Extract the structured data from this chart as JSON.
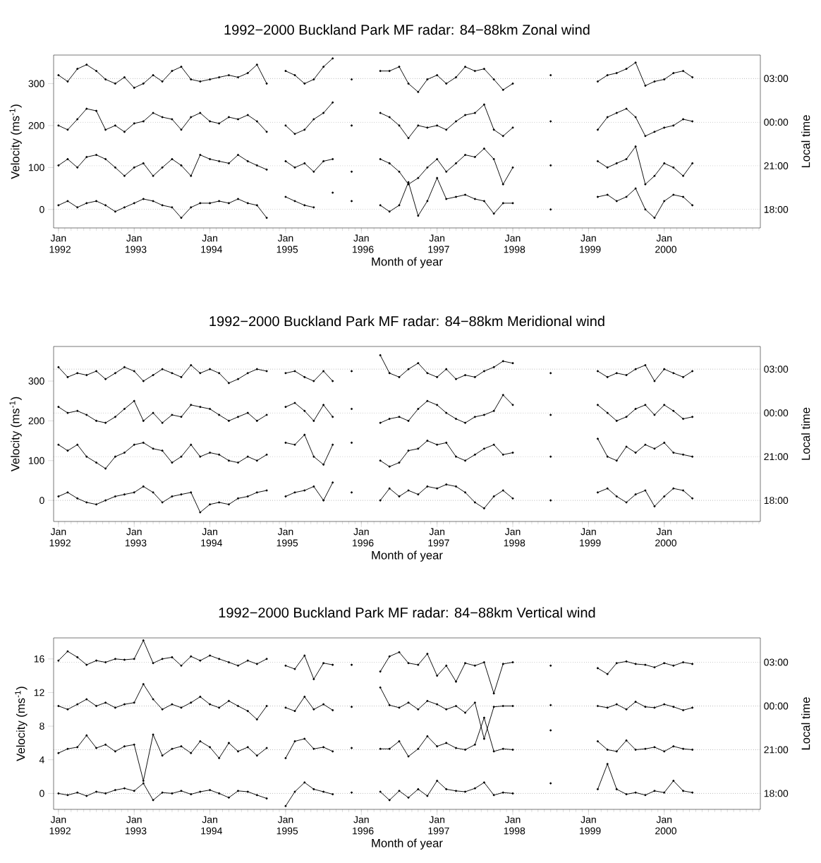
{
  "chart_data": [
    {
      "type": "line",
      "title": "1992−2000 Buckland Park MF radar: 84−88km Zonal wind",
      "xlabel": "Month of year",
      "ylabel": "Velocity (ms$^{-1}$)",
      "y2label": "Local time",
      "x": [
        "1992-01-01",
        "1992-02-15",
        "1992-04-01",
        "1992-05-15",
        "1992-07-01",
        "1992-08-15",
        "1992-10-01",
        "1992-11-15",
        "1993-01-01",
        "1993-02-15",
        "1993-04-01",
        "1993-05-15",
        "1993-07-01",
        "1993-08-15",
        "1993-10-01",
        "1993-11-15",
        "1994-01-01",
        "1994-02-15",
        "1994-04-01",
        "1994-05-15",
        "1994-07-01",
        "1994-08-15",
        "1994-10-01",
        "1994-11-15",
        "1995-01-01",
        "1995-02-15",
        "1995-04-01",
        "1995-05-15",
        "1995-07-01",
        "1995-08-15",
        "1995-10-01",
        "1995-11-15",
        "1996-01-01",
        "1996-02-15",
        "1996-04-01",
        "1996-05-15",
        "1996-07-01",
        "1996-08-15",
        "1996-10-01",
        "1996-11-15",
        "1997-01-01",
        "1997-02-15",
        "1997-04-01",
        "1997-05-15",
        "1997-07-01",
        "1997-08-15",
        "1997-10-01",
        "1997-11-15",
        "1998-01-01",
        "1998-02-15",
        "1998-04-01",
        "1998-05-15",
        "1998-07-01",
        "1998-08-15",
        "1998-10-01",
        "1998-11-15",
        "1999-01-01",
        "1999-02-15",
        "1999-04-01",
        "1999-05-15",
        "1999-07-01",
        "1999-08-15",
        "1999-10-01",
        "1999-11-15",
        "2000-01-01",
        "2000-02-15",
        "2000-04-01",
        "2000-05-15"
      ],
      "xlim": [
        "1991-12-08",
        "2001-04-08"
      ],
      "xticks": [
        {
          "value": "1992-01",
          "label": "Jan 1992"
        },
        {
          "value": "1993-01",
          "label": "Jan 1993"
        },
        {
          "value": "1994-01",
          "label": "Jan 1994"
        },
        {
          "value": "1995-01",
          "label": "Jan 1995"
        },
        {
          "value": "1996-01",
          "label": "Jan 1996"
        },
        {
          "value": "1997-01",
          "label": "Jan 1997"
        },
        {
          "value": "1998-01",
          "label": "Jan 1998"
        },
        {
          "value": "1999-01",
          "label": "Jan 1999"
        },
        {
          "value": "2000-01",
          "label": "Jan 2000"
        }
      ],
      "ylim": [
        -44,
        368
      ],
      "yticks": [
        0,
        100,
        200,
        300
      ],
      "ref_lines": [
        {
          "axis": "y",
          "value": 0,
          "line_style": "dotted",
          "color": "#000000"
        },
        {
          "axis": "y",
          "value": 104,
          "line_style": "dotted",
          "color": "#000000"
        },
        {
          "axis": "y",
          "value": 208,
          "line_style": "dotted",
          "color": "#000000"
        },
        {
          "axis": "y",
          "value": 312,
          "line_style": "dotted",
          "color": "#000000"
        }
      ],
      "annotations": [
        "18:00",
        "21:00",
        "00:00",
        "03:00"
      ],
      "marker": "circle",
      "line_style": "solid",
      "series": [
        {
          "color": "#000000",
          "values": [
            10,
            20,
            5,
            15,
            20,
            10,
            -5,
            5,
            15,
            25,
            20,
            10,
            5,
            -20,
            5,
            15,
            15,
            20,
            15,
            25,
            15,
            10,
            -20,
            null,
            30,
            20,
            10,
            5,
            null,
            40,
            null,
            20,
            null,
            null,
            10,
            -5,
            10,
            65,
            -15,
            20,
            75,
            25,
            30,
            35,
            25,
            20,
            -10,
            15,
            15,
            null,
            null,
            null,
            0,
            null,
            null,
            null,
            null,
            30,
            35,
            20,
            30,
            50,
            0,
            -20,
            20,
            35,
            30,
            10
          ]
        },
        {
          "color": "#000000",
          "values": [
            105,
            120,
            100,
            125,
            130,
            120,
            100,
            80,
            100,
            110,
            80,
            100,
            120,
            105,
            80,
            130,
            120,
            115,
            110,
            130,
            115,
            105,
            95,
            null,
            115,
            100,
            110,
            90,
            115,
            120,
            null,
            90,
            null,
            null,
            120,
            110,
            90,
            60,
            75,
            100,
            120,
            90,
            110,
            130,
            125,
            145,
            120,
            60,
            100,
            null,
            null,
            null,
            105,
            null,
            null,
            null,
            null,
            115,
            100,
            110,
            120,
            150,
            60,
            80,
            110,
            100,
            80,
            110
          ]
        },
        {
          "color": "#000000",
          "values": [
            200,
            190,
            215,
            240,
            235,
            190,
            200,
            185,
            205,
            210,
            230,
            220,
            215,
            190,
            220,
            230,
            210,
            205,
            220,
            215,
            225,
            210,
            185,
            null,
            200,
            180,
            190,
            215,
            230,
            255,
            null,
            200,
            null,
            null,
            230,
            220,
            200,
            170,
            200,
            195,
            200,
            190,
            210,
            225,
            230,
            250,
            190,
            175,
            195,
            null,
            null,
            null,
            210,
            null,
            null,
            null,
            null,
            190,
            220,
            230,
            240,
            220,
            175,
            185,
            195,
            200,
            215,
            210
          ]
        },
        {
          "color": "#000000",
          "values": [
            320,
            305,
            335,
            345,
            330,
            310,
            300,
            315,
            290,
            300,
            320,
            305,
            330,
            340,
            310,
            305,
            310,
            315,
            320,
            315,
            325,
            345,
            300,
            null,
            330,
            320,
            300,
            310,
            340,
            360,
            null,
            310,
            null,
            null,
            330,
            330,
            340,
            300,
            280,
            310,
            320,
            300,
            315,
            340,
            330,
            335,
            310,
            285,
            300,
            null,
            null,
            null,
            320,
            null,
            null,
            null,
            null,
            305,
            320,
            325,
            335,
            350,
            295,
            305,
            310,
            325,
            330,
            315
          ]
        }
      ]
    },
    {
      "type": "line",
      "title": "1992−2000 Buckland Park MF radar: 84−88km Meridional wind",
      "xlabel": "Month of year",
      "ylabel": "Velocity (ms$^{-1}$)",
      "y2label": "Local time",
      "x": [
        "1992-01-01",
        "1992-02-15",
        "1992-04-01",
        "1992-05-15",
        "1992-07-01",
        "1992-08-15",
        "1992-10-01",
        "1992-11-15",
        "1993-01-01",
        "1993-02-15",
        "1993-04-01",
        "1993-05-15",
        "1993-07-01",
        "1993-08-15",
        "1993-10-01",
        "1993-11-15",
        "1994-01-01",
        "1994-02-15",
        "1994-04-01",
        "1994-05-15",
        "1994-07-01",
        "1994-08-15",
        "1994-10-01",
        "1994-11-15",
        "1995-01-01",
        "1995-02-15",
        "1995-04-01",
        "1995-05-15",
        "1995-07-01",
        "1995-08-15",
        "1995-10-01",
        "1995-11-15",
        "1996-01-01",
        "1996-02-15",
        "1996-04-01",
        "1996-05-15",
        "1996-07-01",
        "1996-08-15",
        "1996-10-01",
        "1996-11-15",
        "1997-01-01",
        "1997-02-15",
        "1997-04-01",
        "1997-05-15",
        "1997-07-01",
        "1997-08-15",
        "1997-10-01",
        "1997-11-15",
        "1998-01-01",
        "1998-02-15",
        "1998-04-01",
        "1998-05-15",
        "1998-07-01",
        "1998-08-15",
        "1998-10-01",
        "1998-11-15",
        "1999-01-01",
        "1999-02-15",
        "1999-04-01",
        "1999-05-15",
        "1999-07-01",
        "1999-08-15",
        "1999-10-01",
        "1999-11-15",
        "2000-01-01",
        "2000-02-15",
        "2000-04-01",
        "2000-05-15"
      ],
      "xlim": [
        "1991-12-08",
        "2001-04-08"
      ],
      "xticks": [
        {
          "value": "1992-01",
          "label": "Jan 1992"
        },
        {
          "value": "1993-01",
          "label": "Jan 1993"
        },
        {
          "value": "1994-01",
          "label": "Jan 1994"
        },
        {
          "value": "1995-01",
          "label": "Jan 1995"
        },
        {
          "value": "1996-01",
          "label": "Jan 1996"
        },
        {
          "value": "1997-01",
          "label": "Jan 1997"
        },
        {
          "value": "1998-01",
          "label": "Jan 1998"
        },
        {
          "value": "1999-01",
          "label": "Jan 1999"
        },
        {
          "value": "2000-01",
          "label": "Jan 2000"
        }
      ],
      "ylim": [
        -53,
        387
      ],
      "yticks": [
        0,
        100,
        200,
        300
      ],
      "ref_lines": [
        {
          "axis": "y",
          "value": 0,
          "line_style": "dotted",
          "color": "#000000"
        },
        {
          "axis": "y",
          "value": 110,
          "line_style": "dotted",
          "color": "#000000"
        },
        {
          "axis": "y",
          "value": 220,
          "line_style": "dotted",
          "color": "#000000"
        },
        {
          "axis": "y",
          "value": 330,
          "line_style": "dotted",
          "color": "#000000"
        }
      ],
      "annotations": [
        "18:00",
        "21:00",
        "00:00",
        "03:00"
      ],
      "marker": "circle",
      "line_style": "solid",
      "series": [
        {
          "color": "#000000",
          "values": [
            10,
            20,
            5,
            -5,
            -10,
            0,
            10,
            15,
            20,
            35,
            20,
            -5,
            10,
            15,
            20,
            -30,
            -10,
            -5,
            -10,
            5,
            10,
            20,
            25,
            null,
            10,
            20,
            25,
            35,
            0,
            45,
            null,
            20,
            null,
            null,
            0,
            30,
            10,
            25,
            15,
            35,
            30,
            40,
            35,
            20,
            -5,
            -20,
            10,
            25,
            5,
            null,
            null,
            null,
            0,
            null,
            null,
            null,
            null,
            20,
            30,
            10,
            -5,
            15,
            25,
            -15,
            10,
            30,
            25,
            5
          ]
        },
        {
          "color": "#000000",
          "values": [
            140,
            125,
            140,
            110,
            95,
            80,
            110,
            120,
            140,
            145,
            130,
            125,
            95,
            110,
            140,
            110,
            120,
            115,
            100,
            95,
            110,
            100,
            115,
            null,
            145,
            140,
            165,
            110,
            90,
            140,
            null,
            145,
            null,
            null,
            100,
            85,
            95,
            125,
            130,
            150,
            140,
            145,
            110,
            100,
            115,
            130,
            140,
            115,
            120,
            null,
            null,
            null,
            110,
            null,
            null,
            null,
            null,
            155,
            110,
            100,
            135,
            120,
            140,
            130,
            145,
            120,
            115,
            110
          ]
        },
        {
          "color": "#000000",
          "values": [
            235,
            220,
            225,
            215,
            200,
            195,
            210,
            230,
            250,
            200,
            220,
            195,
            215,
            210,
            240,
            235,
            230,
            215,
            200,
            210,
            220,
            200,
            215,
            null,
            235,
            245,
            225,
            200,
            240,
            210,
            null,
            230,
            null,
            null,
            195,
            205,
            210,
            200,
            230,
            250,
            240,
            220,
            205,
            195,
            210,
            215,
            225,
            265,
            240,
            null,
            null,
            null,
            215,
            null,
            null,
            null,
            null,
            240,
            220,
            200,
            210,
            230,
            240,
            215,
            240,
            225,
            205,
            210
          ]
        },
        {
          "color": "#000000",
          "values": [
            335,
            310,
            320,
            315,
            325,
            305,
            320,
            335,
            325,
            300,
            315,
            330,
            320,
            310,
            340,
            320,
            330,
            320,
            295,
            305,
            320,
            330,
            325,
            null,
            320,
            325,
            310,
            300,
            325,
            300,
            null,
            325,
            null,
            null,
            365,
            320,
            310,
            330,
            345,
            320,
            310,
            330,
            305,
            315,
            310,
            325,
            335,
            350,
            345,
            null,
            null,
            null,
            320,
            null,
            null,
            null,
            null,
            325,
            310,
            320,
            315,
            330,
            340,
            300,
            330,
            320,
            310,
            325
          ]
        }
      ]
    },
    {
      "type": "line",
      "title": "1992−2000 Buckland Park MF radar: 84−88km Vertical wind",
      "xlabel": "Month of year",
      "ylabel": "Velocity (ms$^{-1}$)",
      "y2label": "Local time",
      "x": [
        "1992-01-01",
        "1992-02-15",
        "1992-04-01",
        "1992-05-15",
        "1992-07-01",
        "1992-08-15",
        "1992-10-01",
        "1992-11-15",
        "1993-01-01",
        "1993-02-15",
        "1993-04-01",
        "1993-05-15",
        "1993-07-01",
        "1993-08-15",
        "1993-10-01",
        "1993-11-15",
        "1994-01-01",
        "1994-02-15",
        "1994-04-01",
        "1994-05-15",
        "1994-07-01",
        "1994-08-15",
        "1994-10-01",
        "1994-11-15",
        "1995-01-01",
        "1995-02-15",
        "1995-04-01",
        "1995-05-15",
        "1995-07-01",
        "1995-08-15",
        "1995-10-01",
        "1995-11-15",
        "1996-01-01",
        "1996-02-15",
        "1996-04-01",
        "1996-05-15",
        "1996-07-01",
        "1996-08-15",
        "1996-10-01",
        "1996-11-15",
        "1997-01-01",
        "1997-02-15",
        "1997-04-01",
        "1997-05-15",
        "1997-07-01",
        "1997-08-15",
        "1997-10-01",
        "1997-11-15",
        "1998-01-01",
        "1998-02-15",
        "1998-04-01",
        "1998-05-15",
        "1998-07-01",
        "1998-08-15",
        "1998-10-01",
        "1998-11-15",
        "1999-01-01",
        "1999-02-15",
        "1999-04-01",
        "1999-05-15",
        "1999-07-01",
        "1999-08-15",
        "1999-10-01",
        "1999-11-15",
        "2000-01-01",
        "2000-02-15",
        "2000-04-01",
        "2000-05-15"
      ],
      "xlim": [
        "1991-12-08",
        "2001-04-08"
      ],
      "xticks": [
        {
          "value": "1992-01",
          "label": "Jan 1992"
        },
        {
          "value": "1993-01",
          "label": "Jan 1993"
        },
        {
          "value": "1994-01",
          "label": "Jan 1994"
        },
        {
          "value": "1995-01",
          "label": "Jan 1995"
        },
        {
          "value": "1996-01",
          "label": "Jan 1996"
        },
        {
          "value": "1997-01",
          "label": "Jan 1997"
        },
        {
          "value": "1998-01",
          "label": "Jan 1998"
        },
        {
          "value": "1999-01",
          "label": "Jan 1999"
        },
        {
          "value": "2000-01",
          "label": "Jan 2000"
        }
      ],
      "ylim": [
        -1.9,
        18.5
      ],
      "yticks": [
        0,
        4,
        8,
        12,
        16
      ],
      "ref_lines": [
        {
          "axis": "y",
          "value": 0,
          "line_style": "dotted",
          "color": "#000000"
        },
        {
          "axis": "y",
          "value": 5.2,
          "line_style": "dotted",
          "color": "#000000"
        },
        {
          "axis": "y",
          "value": 10.4,
          "line_style": "dotted",
          "color": "#000000"
        },
        {
          "axis": "y",
          "value": 15.6,
          "line_style": "dotted",
          "color": "#000000"
        }
      ],
      "annotations": [
        "18:00",
        "21:00",
        "00:00",
        "03:00"
      ],
      "marker": "circle",
      "line_style": "solid",
      "series": [
        {
          "color": "#000000",
          "values": [
            0,
            -0.2,
            0.1,
            -0.3,
            0.2,
            0,
            0.4,
            0.6,
            0.3,
            1.2,
            -0.8,
            0.1,
            0,
            0.3,
            -0.1,
            0.2,
            0.4,
            0,
            -0.5,
            0.3,
            0.2,
            -0.2,
            -0.6,
            null,
            -1.5,
            0.2,
            1.3,
            0.5,
            0.2,
            -0.1,
            null,
            0.1,
            null,
            null,
            0.2,
            -0.8,
            0.3,
            -0.5,
            0.5,
            -0.3,
            1.5,
            0.5,
            0.3,
            0.2,
            0.6,
            1.3,
            -0.2,
            0.1,
            0,
            null,
            null,
            null,
            1.2,
            null,
            null,
            null,
            null,
            0.5,
            3.5,
            0.5,
            -0.1,
            0.1,
            -0.2,
            0.3,
            0.1,
            1.5,
            0.3,
            0.1
          ]
        },
        {
          "color": "#000000",
          "values": [
            4.8,
            5.3,
            5.5,
            6.9,
            5.4,
            5.8,
            5.0,
            5.6,
            5.8,
            1.5,
            7.0,
            4.5,
            5.3,
            5.6,
            4.8,
            6.2,
            5.5,
            4.2,
            6.0,
            5.0,
            5.5,
            4.5,
            5.4,
            null,
            4.2,
            6.2,
            6.5,
            5.3,
            5.5,
            5.0,
            null,
            5.4,
            null,
            null,
            5.3,
            5.3,
            6.2,
            4.4,
            5.3,
            6.8,
            5.6,
            6.0,
            5.4,
            5.2,
            5.8,
            9.0,
            5.0,
            5.3,
            5.2,
            null,
            null,
            null,
            7.5,
            null,
            null,
            null,
            null,
            6.2,
            5.2,
            5.0,
            6.3,
            5.2,
            5.3,
            5.5,
            5.0,
            5.6,
            5.3,
            5.2
          ]
        },
        {
          "color": "#000000",
          "values": [
            10.4,
            10.0,
            10.6,
            11.2,
            10.4,
            10.8,
            10.2,
            10.6,
            10.8,
            13.0,
            11.2,
            10.0,
            10.6,
            10.2,
            10.8,
            11.5,
            10.6,
            10.2,
            11.0,
            10.4,
            9.8,
            8.8,
            10.4,
            null,
            10.2,
            9.8,
            11.5,
            10.0,
            10.6,
            9.9,
            null,
            10.3,
            null,
            null,
            12.6,
            10.5,
            10.2,
            10.8,
            10.0,
            11.0,
            10.6,
            10.0,
            10.4,
            9.6,
            10.8,
            6.5,
            10.3,
            10.4,
            10.4,
            null,
            null,
            null,
            10.5,
            null,
            null,
            null,
            null,
            10.4,
            10.2,
            10.6,
            10.0,
            10.9,
            10.3,
            10.2,
            10.6,
            10.3,
            9.9,
            10.2
          ]
        },
        {
          "color": "#000000",
          "values": [
            15.8,
            16.9,
            16.2,
            15.3,
            15.8,
            15.6,
            16.0,
            15.9,
            16.0,
            18.2,
            15.5,
            16.0,
            16.2,
            15.2,
            16.3,
            15.8,
            16.4,
            16.0,
            15.6,
            15.2,
            15.8,
            15.4,
            16.0,
            null,
            15.2,
            14.8,
            16.4,
            13.6,
            15.5,
            15.3,
            null,
            15.3,
            null,
            null,
            14.5,
            16.3,
            16.8,
            15.5,
            15.3,
            16.6,
            14.0,
            15.2,
            13.3,
            15.5,
            15.2,
            15.6,
            11.9,
            15.4,
            15.6,
            null,
            null,
            null,
            15.2,
            null,
            null,
            null,
            null,
            14.9,
            14.2,
            15.5,
            15.7,
            15.4,
            15.3,
            15.0,
            15.5,
            15.2,
            15.6,
            15.4
          ]
        }
      ]
    }
  ]
}
